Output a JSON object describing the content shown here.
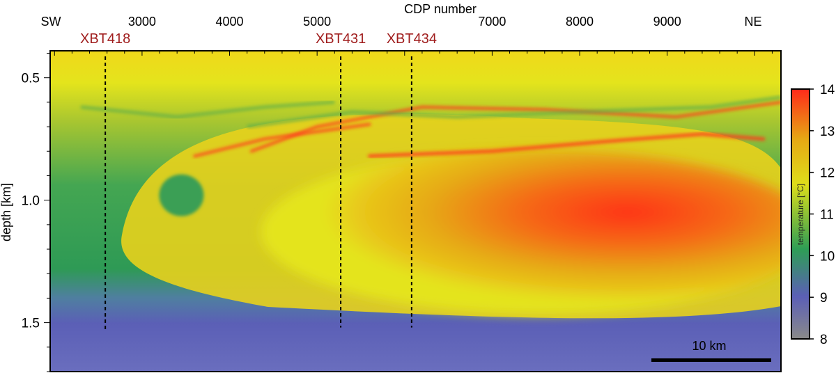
{
  "chart_data": {
    "type": "heatmap",
    "title": "",
    "xlabel": "CDP number",
    "ylabel": "depth [km]",
    "xlim": [
      1950,
      10300
    ],
    "ylim": [
      1.7,
      0.39
    ],
    "x_ticks": [
      3000,
      4000,
      5000,
      6000,
      7000,
      8000,
      9000
    ],
    "x_tick_labels": [
      "3000",
      "4000",
      "5000",
      "",
      "7000",
      "8000",
      "9000"
    ],
    "y_ticks": [
      0.5,
      1.0,
      1.5
    ],
    "y_tick_labels": [
      "0.5",
      "1.0",
      "1.5"
    ],
    "direction_labels": {
      "left": "SW",
      "right": "NE"
    },
    "colorbar": {
      "label": "temperature [°C]",
      "min": 8,
      "max": 14,
      "ticks": [
        8,
        9,
        10,
        11,
        12,
        13,
        14
      ],
      "colors": [
        "#8a8a8a",
        "#5b5fb6",
        "#2e9e55",
        "#dede1a",
        "#e6a814",
        "#ff2a1a"
      ]
    },
    "xbt_profiles": [
      {
        "name": "XBT418",
        "cdp": 2580,
        "depth_end": 1.53
      },
      {
        "name": "XBT431",
        "cdp": 5270,
        "depth_end": 1.52
      },
      {
        "name": "XBT434",
        "cdp": 6080,
        "depth_end": 1.52
      }
    ],
    "scale_bar": {
      "label": "10 km"
    },
    "features": {
      "warm_core": {
        "cdp_range": [
          4600,
          10300
        ],
        "depth_range": [
          0.78,
          1.45
        ],
        "temperature": 13.2
      },
      "surface_layer_temperature": 12,
      "deep_water_temperature": 9.4
    }
  }
}
